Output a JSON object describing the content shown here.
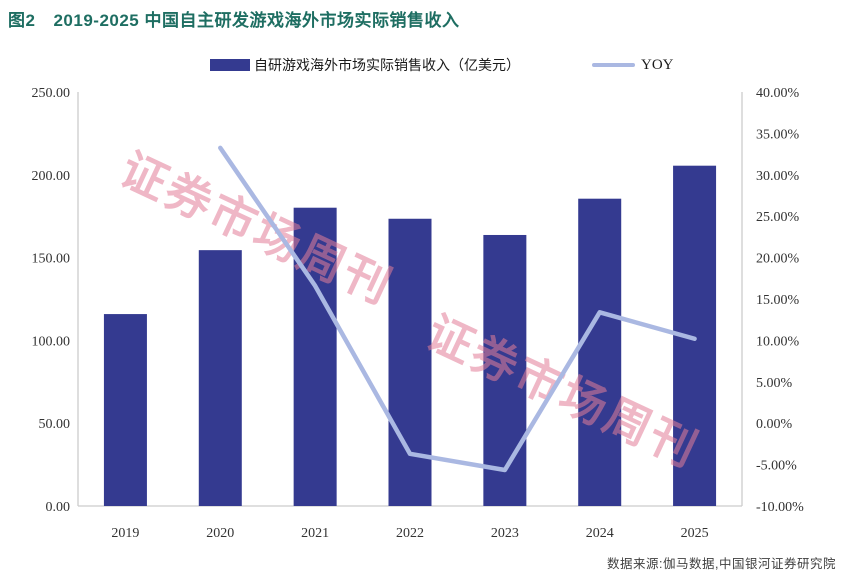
{
  "figure": {
    "title_prefix": "图2",
    "title": "2019-2025 中国自主研发游戏海外市场实际销售收入",
    "source": "数据来源:伽马数据,中国银河证券研究院",
    "watermark": "证券市场周刊"
  },
  "legend": {
    "bars_label": "自研游戏海外市场实际销售收入（亿美元）",
    "line_label": "YOY"
  },
  "colors": {
    "bar": "#343a90",
    "line": "#aab8e2",
    "title": "#1e6e62",
    "watermark": "#e27e99",
    "axis_line": "#cccccc",
    "tick_text": "#333333"
  },
  "chart_data": {
    "type": "bar",
    "subtype": "bar+line combo, dual axis",
    "title": "2019-2025 中国自主研发游戏海外市场实际销售收入",
    "categories": [
      "2019",
      "2020",
      "2021",
      "2022",
      "2023",
      "2024",
      "2025"
    ],
    "series": [
      {
        "name": "自研游戏海外市场实际销售收入（亿美元）",
        "type": "bar",
        "axis": "left",
        "values": [
          115.9,
          154.5,
          180.13,
          173.46,
          163.66,
          185.57,
          205.5
        ]
      },
      {
        "name": "YOY",
        "type": "line",
        "axis": "right",
        "values": [
          null,
          33.25,
          16.59,
          -3.7,
          -5.65,
          13.39,
          10.2
        ]
      }
    ],
    "left_axis": {
      "min": 0,
      "max": 250,
      "step": 50,
      "tick_labels": [
        "0.00",
        "50.00",
        "100.00",
        "150.00",
        "200.00",
        "250.00"
      ]
    },
    "right_axis": {
      "min": -10,
      "max": 40,
      "step": 5,
      "tick_labels": [
        "-10.00%",
        "-5.00%",
        "0.00%",
        "5.00%",
        "10.00%",
        "15.00%",
        "20.00%",
        "25.00%",
        "30.00%",
        "35.00%",
        "40.00%"
      ]
    },
    "grid": false,
    "legend_position": "top"
  }
}
